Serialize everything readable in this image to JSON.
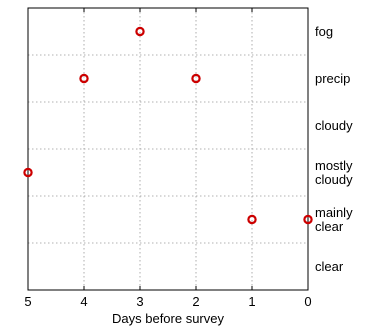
{
  "chart_data": {
    "type": "scatter",
    "title": "",
    "xlabel": "Days before survey",
    "ylabel": "",
    "xlim": [
      5,
      0
    ],
    "x_reversed": true,
    "x_ticks": [
      5,
      4,
      3,
      2,
      1,
      0
    ],
    "y_categories_bottom_to_top": [
      "clear",
      "mainly clear",
      "mostly cloudy",
      "cloudy",
      "precip",
      "fog"
    ],
    "y_label_lines": [
      [
        "clear"
      ],
      [
        "mainly",
        "clear"
      ],
      [
        "mostly",
        "cloudy"
      ],
      [
        "cloudy"
      ],
      [
        "precip"
      ],
      [
        "fog"
      ]
    ],
    "grid": true,
    "marker_color": "#cc0000",
    "points": [
      {
        "x": 3,
        "y": "fog"
      },
      {
        "x": 4,
        "y": "precip"
      },
      {
        "x": 2,
        "y": "precip"
      },
      {
        "x": 5,
        "y": "mostly cloudy"
      },
      {
        "x": 1,
        "y": "mainly clear"
      },
      {
        "x": 0,
        "y": "mainly clear"
      }
    ]
  }
}
